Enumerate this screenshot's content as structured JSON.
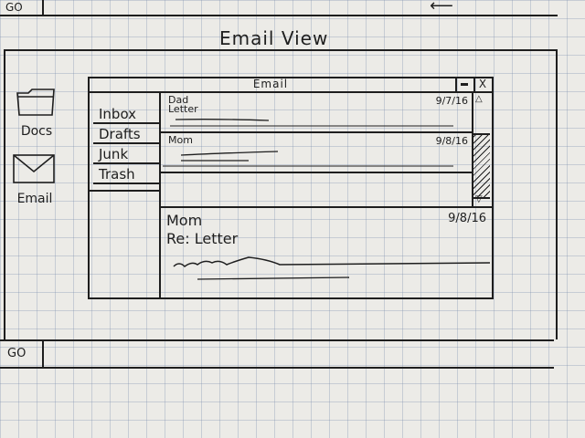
{
  "taskbar": {
    "top_go_label": "GO",
    "bottom_go_label": "GO"
  },
  "page_title": "Email View",
  "desktop": {
    "icons": [
      {
        "label": "Docs",
        "icon": "folder-icon"
      },
      {
        "label": "Email",
        "icon": "envelope-icon"
      }
    ]
  },
  "window": {
    "title": "Email",
    "close_glyph": "X",
    "scroll_up_glyph": "△",
    "scroll_down_glyph": "▽",
    "folders": [
      "Inbox",
      "Drafts",
      "Junk",
      "Trash"
    ],
    "messages": [
      {
        "from": "Dad",
        "subject": "Letter",
        "date": "9/7/16"
      },
      {
        "from": "Mom",
        "subject": "",
        "date": "9/8/16"
      }
    ],
    "preview": {
      "from": "Mom",
      "subject": "Re: Letter",
      "date": "9/8/16"
    }
  }
}
